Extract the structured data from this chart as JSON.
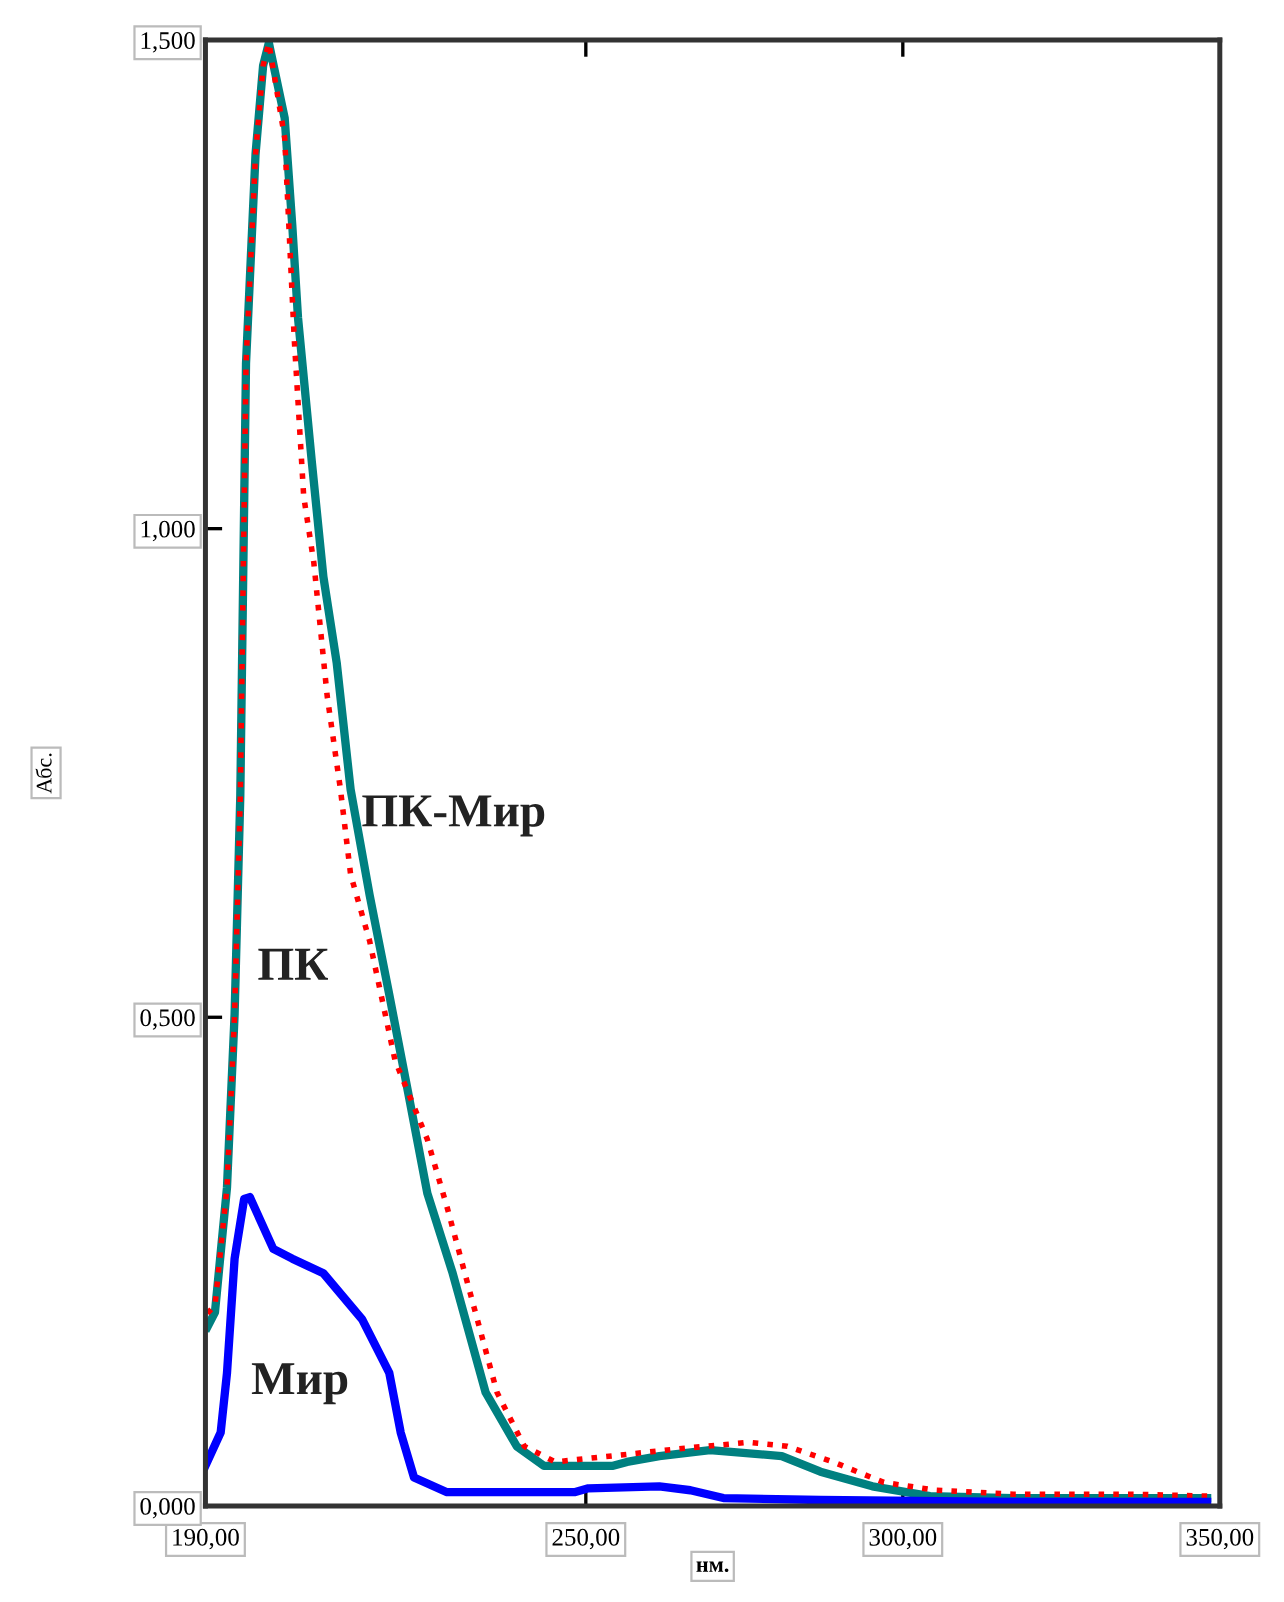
{
  "chart_data": {
    "type": "line",
    "xlabel": "нм.",
    "ylabel": "Абс.",
    "xlim": [
      190,
      350
    ],
    "ylim": [
      0,
      1.5
    ],
    "xticks": [
      {
        "value": 190,
        "label": "190,00"
      },
      {
        "value": 250,
        "label": "250,00"
      },
      {
        "value": 300,
        "label": "300,00"
      },
      {
        "value": 350,
        "label": "350,00"
      }
    ],
    "yticks": [
      {
        "value": 0,
        "label": "0,000"
      },
      {
        "value": 0.5,
        "label": "0,500"
      },
      {
        "value": 1.0,
        "label": "1,000"
      },
      {
        "value": 1.5,
        "label": "1,500"
      }
    ],
    "grid": false,
    "legend": false,
    "marker": "none",
    "series": [
      {
        "name": "ПК",
        "color": "#008080",
        "line_style": "solid",
        "x": [
          190.3,
          191.5,
          193.4,
          194.6,
          195.5,
          196.4,
          197.9,
          199.1,
          200,
          202.5,
          203.7,
          204.6,
          206.8,
          208.6,
          210.7,
          212.9,
          215.9,
          219,
          222,
          225,
          229,
          234.2,
          239.1,
          243.4,
          254.3,
          256.5,
          261.6,
          269.6,
          280.9,
          287,
          295.2,
          304.3,
          317.4,
          348
        ],
        "values": [
          0.183,
          0.198,
          0.326,
          0.503,
          0.727,
          1.169,
          1.383,
          1.474,
          1.497,
          1.42,
          1.31,
          1.216,
          1.067,
          0.951,
          0.863,
          0.733,
          0.625,
          0.523,
          0.422,
          0.32,
          0.238,
          0.116,
          0.061,
          0.041,
          0.041,
          0.045,
          0.051,
          0.057,
          0.051,
          0.035,
          0.02,
          0.01,
          0.008,
          0.008
        ]
      },
      {
        "name": "ПК-Мир",
        "color": "#ff0000",
        "line_style": "dotted",
        "x": [
          190.3,
          191.5,
          193.4,
          194.6,
          195.5,
          196.4,
          197.9,
          199.1,
          200,
          202.5,
          204,
          205.5,
          207.1,
          209.2,
          211.3,
          212.9,
          215.9,
          219.9,
          225,
          228.1,
          232,
          236,
          240.3,
          245.2,
          265.6,
          275.7,
          281.8,
          289,
          297,
          305.2,
          317.4,
          335.7,
          348
        ],
        "values": [
          0.197,
          0.205,
          0.326,
          0.503,
          0.727,
          1.169,
          1.383,
          1.474,
          1.497,
          1.4,
          1.195,
          1.033,
          0.965,
          0.829,
          0.733,
          0.646,
          0.578,
          0.456,
          0.375,
          0.306,
          0.212,
          0.116,
          0.061,
          0.045,
          0.059,
          0.065,
          0.061,
          0.045,
          0.024,
          0.016,
          0.012,
          0.012,
          0.01
        ]
      },
      {
        "name": "Мир",
        "color": "#0000ff",
        "line_style": "solid",
        "x": [
          190,
          192.4,
          193.4,
          194.6,
          196.1,
          197,
          200.7,
          203.7,
          208.6,
          214.7,
          219,
          220.8,
          222.9,
          228.1,
          248.2,
          250.4,
          261.6,
          266.5,
          271.7,
          287,
          317.4,
          348
        ],
        "values": [
          0.041,
          0.075,
          0.136,
          0.253,
          0.314,
          0.316,
          0.263,
          0.253,
          0.238,
          0.191,
          0.136,
          0.075,
          0.029,
          0.014,
          0.014,
          0.018,
          0.02,
          0.016,
          0.008,
          0.006,
          0.004,
          0.004
        ]
      }
    ]
  }
}
